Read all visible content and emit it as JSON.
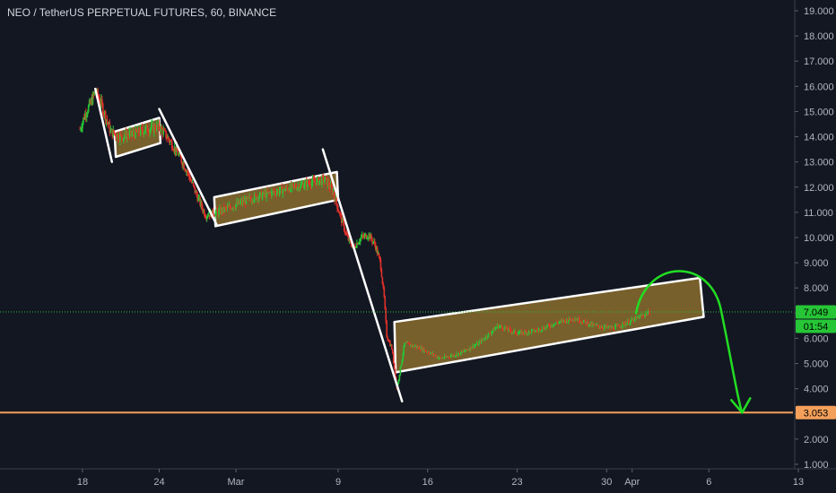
{
  "header": {
    "title": "NEO / TetherUS PERPETUAL FUTURES, 60, BINANCE"
  },
  "colors": {
    "background": "#131722",
    "text": "#b2b5be",
    "candle_up": "#26c636",
    "candle_down": "#e0302a",
    "channel_fill": "#8b6d2e",
    "channel_border": "#ffffff",
    "support_line": "#f5a05a",
    "price_line": "#26c636",
    "projection_arrow": "#22dd22"
  },
  "price_labels": {
    "current_price": "7.049",
    "countdown": "01:54",
    "support_price": "3.053"
  },
  "chart_data": {
    "type": "candlestick",
    "title": "NEO / TetherUS PERPETUAL FUTURES, 60, BINANCE",
    "x_axis": {
      "ticks": [
        {
          "label": "18",
          "day": 18
        },
        {
          "label": "24",
          "day": 24
        },
        {
          "label": "Mar",
          "day": 30
        },
        {
          "label": "9",
          "day": 38
        },
        {
          "label": "16",
          "day": 45
        },
        {
          "label": "23",
          "day": 52
        },
        {
          "label": "30",
          "day": 59
        },
        {
          "label": "Apr",
          "day": 61
        },
        {
          "label": "6",
          "day": 67
        },
        {
          "label": "13",
          "day": 74
        }
      ],
      "range_days": [
        10,
        76
      ]
    },
    "y_axis": {
      "ticks": [
        "19.000",
        "18.000",
        "17.000",
        "16.000",
        "15.000",
        "14.000",
        "13.000",
        "12.000",
        "11.000",
        "10.000",
        "9.000",
        "8.000",
        "7.000",
        "6.000",
        "5.000",
        "4.000",
        "3.000",
        "2.000",
        "1.000"
      ],
      "range": [
        0.5,
        19.5
      ],
      "position": "right"
    },
    "price_path": [
      [
        17.8,
        14.3
      ],
      [
        18.2,
        14.9
      ],
      [
        18.6,
        15.3
      ],
      [
        19.0,
        15.8
      ],
      [
        19.4,
        15.4
      ],
      [
        19.8,
        14.8
      ],
      [
        20.2,
        14.2
      ],
      [
        21.0,
        14.0
      ],
      [
        22.0,
        14.1
      ],
      [
        23.0,
        14.3
      ],
      [
        24.0,
        14.4
      ],
      [
        24.6,
        14.0
      ],
      [
        25.4,
        13.4
      ],
      [
        26.2,
        12.6
      ],
      [
        27.0,
        11.6
      ],
      [
        27.6,
        10.9
      ],
      [
        28.6,
        11.0
      ],
      [
        30.0,
        11.3
      ],
      [
        31.5,
        11.6
      ],
      [
        33.0,
        11.8
      ],
      [
        34.5,
        12.0
      ],
      [
        36.0,
        12.2
      ],
      [
        37.0,
        12.3
      ],
      [
        37.6,
        11.8
      ],
      [
        38.2,
        10.8
      ],
      [
        38.7,
        10.0
      ],
      [
        39.2,
        9.6
      ],
      [
        39.8,
        10.0
      ],
      [
        40.4,
        10.1
      ],
      [
        40.9,
        9.7
      ],
      [
        41.3,
        9.0
      ],
      [
        41.6,
        7.6
      ],
      [
        41.8,
        6.1
      ],
      [
        42.2,
        5.6
      ],
      [
        42.6,
        4.0
      ],
      [
        43.2,
        5.8
      ],
      [
        44.5,
        5.6
      ],
      [
        46.0,
        5.2
      ],
      [
        47.5,
        5.4
      ],
      [
        49.0,
        5.8
      ],
      [
        50.5,
        6.5
      ],
      [
        52.0,
        6.2
      ],
      [
        53.5,
        6.3
      ],
      [
        55.0,
        6.6
      ],
      [
        56.5,
        6.8
      ],
      [
        58.0,
        6.5
      ],
      [
        59.5,
        6.4
      ],
      [
        61.0,
        6.7
      ],
      [
        62.4,
        7.05
      ]
    ],
    "price_line": 7.049,
    "support_level": 3.053,
    "annotations": [
      {
        "type": "channel",
        "name": "channel-1",
        "points": [
          [
            20.5,
            14.2
          ],
          [
            24.0,
            14.75
          ],
          [
            24.1,
            13.75
          ],
          [
            20.6,
            13.2
          ]
        ]
      },
      {
        "type": "channel",
        "name": "channel-2",
        "points": [
          [
            28.3,
            11.6
          ],
          [
            37.9,
            12.6
          ],
          [
            38.0,
            11.5
          ],
          [
            28.4,
            10.45
          ]
        ]
      },
      {
        "type": "channel",
        "name": "channel-3",
        "points": [
          [
            42.4,
            6.65
          ],
          [
            66.3,
            8.4
          ],
          [
            66.6,
            6.85
          ],
          [
            42.5,
            4.65
          ]
        ]
      },
      {
        "type": "trendline",
        "name": "trendline-1",
        "points": [
          [
            19.0,
            15.9
          ],
          [
            20.3,
            13.0
          ]
        ]
      },
      {
        "type": "trendline",
        "name": "trendline-2",
        "points": [
          [
            24.0,
            15.1
          ],
          [
            28.5,
            10.5
          ]
        ]
      },
      {
        "type": "trendline",
        "name": "trendline-3",
        "points": [
          [
            36.8,
            13.5
          ],
          [
            43.0,
            3.5
          ]
        ]
      },
      {
        "type": "projection_arrow",
        "name": "projection-arrow",
        "points": [
          [
            61.3,
            7.0
          ],
          [
            65.0,
            8.2
          ],
          [
            69.6,
            3.05
          ]
        ]
      }
    ],
    "grid": false,
    "legend": "none"
  }
}
